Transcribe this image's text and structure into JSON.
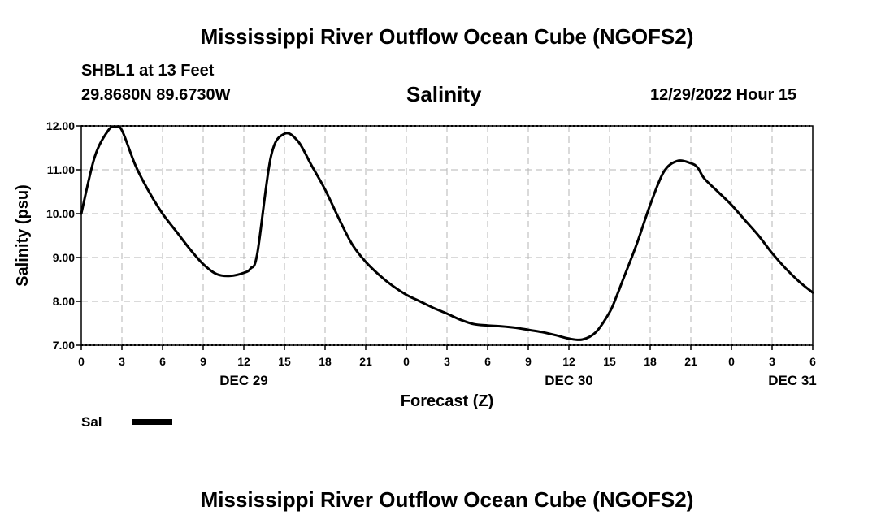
{
  "header": {
    "title": "Mississippi River Outflow Ocean Cube (NGOFS2)",
    "station": "SHBL1 at 13 Feet",
    "coords": "29.8680N  89.6730W",
    "timestamp": "12/29/2022 Hour 15"
  },
  "footer": {
    "title": "Mississippi River Outflow Ocean Cube (NGOFS2)"
  },
  "chart_data": {
    "type": "line",
    "title": "Salinity",
    "xlabel": "Forecast (Z)",
    "ylabel": "Salinity (psu)",
    "ylim": [
      7.0,
      12.0
    ],
    "xlim": [
      0,
      54
    ],
    "grid": true,
    "y_ticks": [
      "7.00",
      "8.00",
      "9.00",
      "10.00",
      "11.00",
      "12.00"
    ],
    "x_tick_labels": [
      "0",
      "3",
      "6",
      "9",
      "12",
      "15",
      "18",
      "21",
      "0",
      "3",
      "6",
      "9",
      "12",
      "15",
      "18",
      "21",
      "0",
      "3",
      "6"
    ],
    "day_labels": [
      {
        "label": "DEC 29",
        "hour": 12
      },
      {
        "label": "DEC 30",
        "hour": 36
      },
      {
        "label": "DEC 31",
        "hour": 52.5
      }
    ],
    "legend": [
      {
        "name": "Sal",
        "color": "#000000"
      }
    ],
    "series": [
      {
        "name": "Sal",
        "x": [
          0,
          1,
          2,
          2.5,
          3,
          4,
          5,
          6,
          7,
          8,
          9,
          10,
          11,
          12,
          12.5,
          13,
          14,
          15,
          16,
          17,
          18,
          19,
          20,
          21,
          22,
          23,
          24,
          25,
          26,
          27,
          28,
          29,
          30,
          31,
          32,
          33,
          34,
          35,
          36,
          37,
          38,
          39,
          39.5,
          40,
          41,
          42,
          43,
          44,
          45,
          45.5,
          46,
          47,
          48,
          49,
          50,
          51,
          52,
          53,
          54
        ],
        "values": [
          10.0,
          11.3,
          11.9,
          11.97,
          11.9,
          11.1,
          10.5,
          10.0,
          9.6,
          9.2,
          8.85,
          8.62,
          8.58,
          8.65,
          8.75,
          9.1,
          11.3,
          11.82,
          11.65,
          11.1,
          10.55,
          9.9,
          9.3,
          8.9,
          8.6,
          8.35,
          8.15,
          8.0,
          7.85,
          7.72,
          7.58,
          7.48,
          7.45,
          7.43,
          7.4,
          7.35,
          7.3,
          7.23,
          7.15,
          7.13,
          7.3,
          7.75,
          8.1,
          8.5,
          9.3,
          10.2,
          10.95,
          11.2,
          11.15,
          11.05,
          10.8,
          10.5,
          10.2,
          9.85,
          9.5,
          9.1,
          8.75,
          8.45,
          8.2
        ]
      }
    ]
  }
}
